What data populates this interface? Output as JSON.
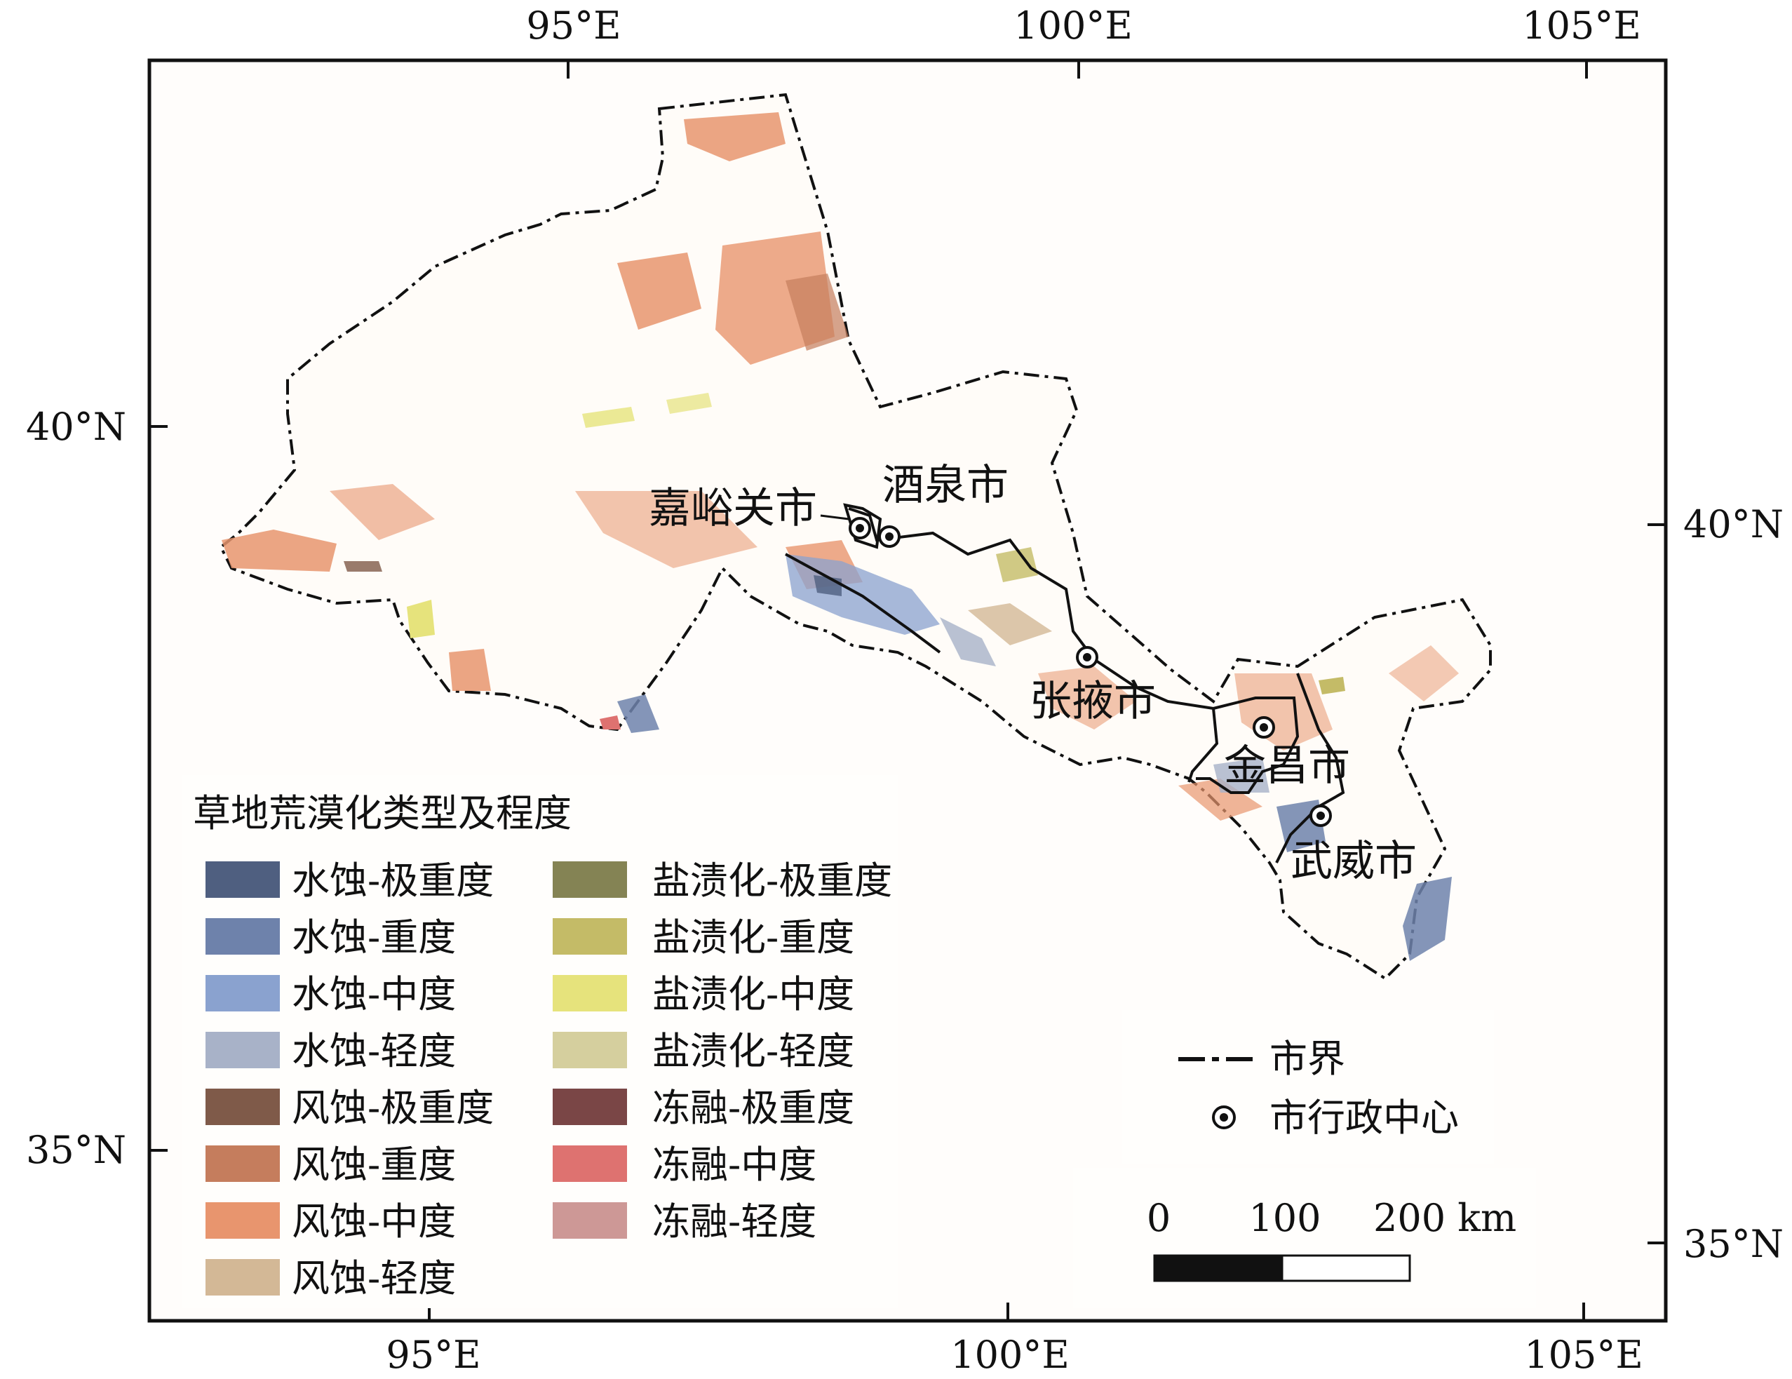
{
  "axes": {
    "top_lon": [
      "95°E",
      "100°E",
      "105°E"
    ],
    "bottom_lon": [
      "95°E",
      "100°E",
      "105°E"
    ],
    "left_lat": [
      "40°N",
      "35°N"
    ],
    "right_lat": [
      "40°N",
      "35°N"
    ]
  },
  "cities": [
    "嘉峪关市",
    "酒泉市",
    "张掖市",
    "金昌市",
    "武威市"
  ],
  "legend": {
    "title": "草地荒漠化类型及程度",
    "items": [
      {
        "label": "水蚀-极重度",
        "color": "#4f5f80"
      },
      {
        "label": "水蚀-重度",
        "color": "#6e82ab"
      },
      {
        "label": "水蚀-中度",
        "color": "#8aa2cf"
      },
      {
        "label": "水蚀-轻度",
        "color": "#a8b2c8"
      },
      {
        "label": "风蚀-极重度",
        "color": "#7f5a49"
      },
      {
        "label": "风蚀-重度",
        "color": "#c57d5d"
      },
      {
        "label": "风蚀-中度",
        "color": "#e8956e"
      },
      {
        "label": "风蚀-轻度",
        "color": "#d3b896"
      },
      {
        "label": "盐渍化-极重度",
        "color": "#848354"
      },
      {
        "label": "盐渍化-重度",
        "color": "#c4bb67"
      },
      {
        "label": "盐渍化-中度",
        "color": "#e6e37c"
      },
      {
        "label": "盐渍化-轻度",
        "color": "#d5cf9e"
      },
      {
        "label": "冻融-极重度",
        "color": "#7a4646"
      },
      {
        "label": "冻融-中度",
        "color": "#de7270"
      },
      {
        "label": "冻融-轻度",
        "color": "#cd9896"
      }
    ]
  },
  "boundary_legend": {
    "boundary_label": "市界",
    "center_label": "市行政中心"
  },
  "scale_bar": {
    "labels": [
      "0",
      "100",
      "200 km"
    ]
  }
}
